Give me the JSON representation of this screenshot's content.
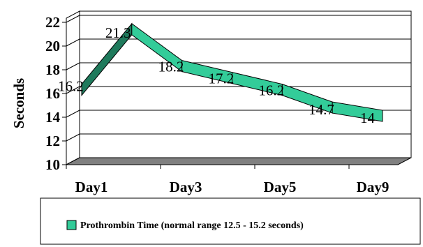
{
  "chart_data": {
    "type": "line",
    "style": "3d-ribbon",
    "categories": [
      "Day1",
      "",
      "Day3",
      "",
      "Day5",
      "",
      "Day9"
    ],
    "x_tick_labels": [
      "Day1",
      "Day3",
      "Day5",
      "Day9"
    ],
    "series": [
      {
        "name": "Prothrombin Time (normal range 12.5 - 15.2 seconds)",
        "values": [
          16.2,
          21.3,
          18.2,
          17.2,
          16.2,
          14.7,
          14
        ],
        "labels": [
          "16.2",
          "21.3",
          "18.2",
          "17.2",
          "16.2",
          "14.7",
          "14"
        ],
        "color": "#33cc99"
      }
    ],
    "ylabel": "Seconds",
    "xlabel": "",
    "ylim": [
      10,
      22
    ],
    "y_ticks": [
      10,
      12,
      14,
      16,
      18,
      20,
      22
    ],
    "grid": true,
    "legend_position": "bottom",
    "colors": {
      "ribbon": "#33cc99",
      "ribbon_edge": "#000000",
      "floor": "#808080",
      "grid": "#000000"
    }
  }
}
